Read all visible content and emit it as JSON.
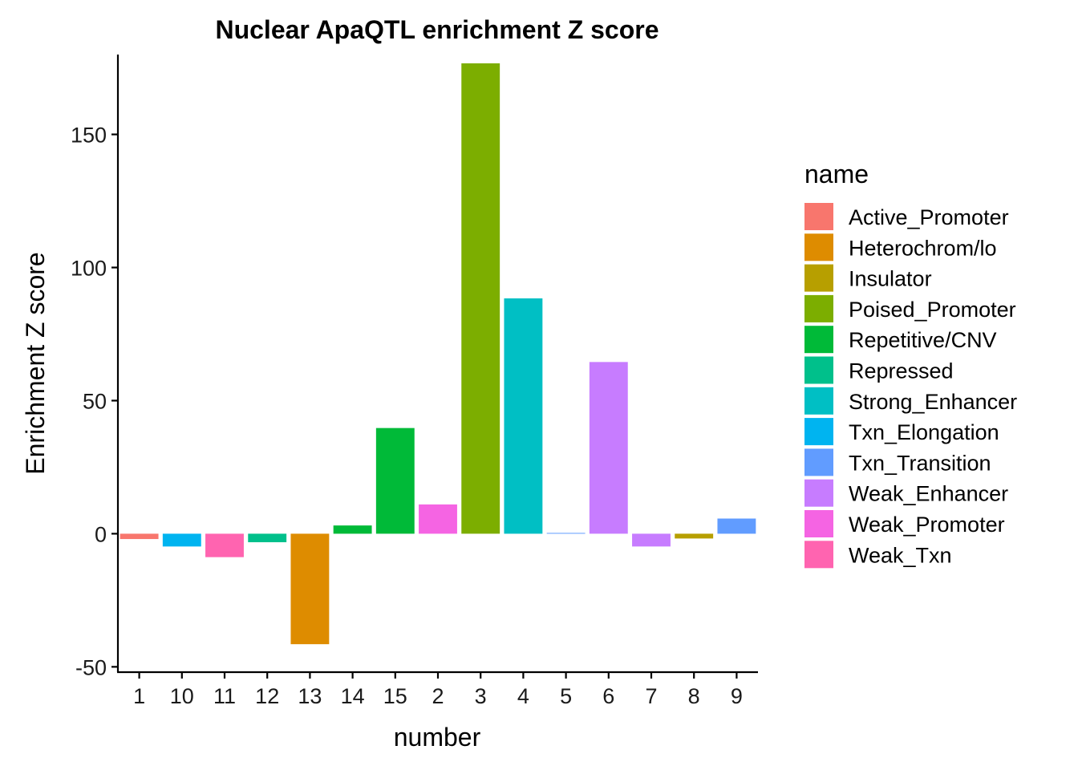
{
  "chart_data": {
    "type": "bar",
    "title": "Nuclear ApaQTL enrichment Z score",
    "xlabel": "number",
    "ylabel": "Enrichment Z score",
    "ylim": [
      -52,
      180
    ],
    "yticks": [
      -50,
      0,
      50,
      100,
      150
    ],
    "ytick_labels": [
      "-50",
      "0",
      "50",
      "100",
      "150"
    ],
    "grid": false,
    "legend_position": "right",
    "legend_title": "name",
    "categories": [
      "1",
      "10",
      "11",
      "12",
      "13",
      "14",
      "15",
      "2",
      "3",
      "4",
      "5",
      "6",
      "7",
      "8",
      "9"
    ],
    "values": [
      -2.0,
      -4.8,
      -8.8,
      -3.2,
      -41.5,
      3.1,
      39.7,
      11.0,
      176.7,
      88.4,
      0.3,
      64.5,
      -4.8,
      -1.8,
      5.7
    ],
    "fill_names": [
      "Active_Promoter",
      "Txn_Elongation",
      "Weak_Txn",
      "Repressed",
      "Heterochrom/lo",
      "Repetitive/CNV",
      "Repetitive/CNV",
      "Weak_Promoter",
      "Poised_Promoter",
      "Strong_Enhancer",
      "Txn_Transition",
      "Weak_Enhancer",
      "Weak_Enhancer",
      "Insulator",
      "Txn_Transition"
    ],
    "legend": [
      {
        "name": "Active_Promoter",
        "color": "#F8766D"
      },
      {
        "name": "Heterochrom/lo",
        "color": "#DE8C00"
      },
      {
        "name": "Insulator",
        "color": "#B79F00"
      },
      {
        "name": "Poised_Promoter",
        "color": "#7CAE00"
      },
      {
        "name": "Repetitive/CNV",
        "color": "#00BA38"
      },
      {
        "name": "Repressed",
        "color": "#00C08B"
      },
      {
        "name": "Strong_Enhancer",
        "color": "#00BFC4"
      },
      {
        "name": "Txn_Elongation",
        "color": "#00B4F0"
      },
      {
        "name": "Txn_Transition",
        "color": "#619CFF"
      },
      {
        "name": "Weak_Enhancer",
        "color": "#C77CFF"
      },
      {
        "name": "Weak_Promoter",
        "color": "#F564E3"
      },
      {
        "name": "Weak_Txn",
        "color": "#FF64B0"
      }
    ]
  }
}
